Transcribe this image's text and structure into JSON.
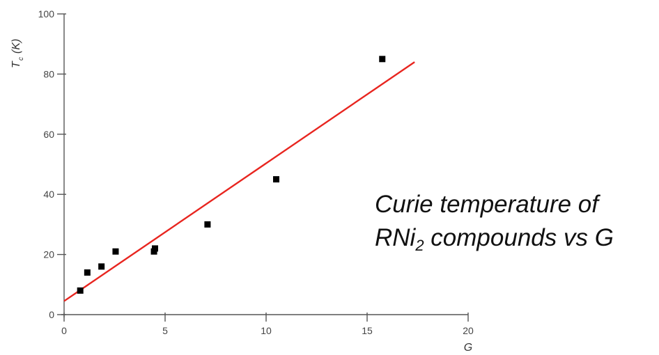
{
  "chart_data": {
    "type": "scatter",
    "title": "",
    "caption": {
      "line1": "Curie temperature of",
      "line2_prefix": "RNi",
      "line2_sub": "2",
      "line2_suffix": " compounds vs G"
    },
    "xlabel": "G",
    "ylabel": {
      "main": "T",
      "sub": "c",
      "unit": "(K)"
    },
    "xlim": [
      0,
      20
    ],
    "ylim": [
      0,
      100
    ],
    "xticks": [
      0,
      5,
      10,
      15,
      20
    ],
    "yticks": [
      0,
      20,
      40,
      60,
      80,
      100
    ],
    "grid": false,
    "series": [
      {
        "kind": "points",
        "color": "#000000",
        "points": [
          {
            "x": 0.8,
            "y": 8
          },
          {
            "x": 1.15,
            "y": 14
          },
          {
            "x": 1.85,
            "y": 16
          },
          {
            "x": 2.55,
            "y": 21
          },
          {
            "x": 4.45,
            "y": 21
          },
          {
            "x": 4.5,
            "y": 22
          },
          {
            "x": 7.1,
            "y": 30
          },
          {
            "x": 10.5,
            "y": 45
          },
          {
            "x": 15.75,
            "y": 85
          }
        ]
      },
      {
        "kind": "fit-line",
        "color": "#e8251f",
        "points": [
          {
            "x": 0,
            "y": 4.5
          },
          {
            "x": 17.35,
            "y": 84
          }
        ]
      }
    ]
  }
}
